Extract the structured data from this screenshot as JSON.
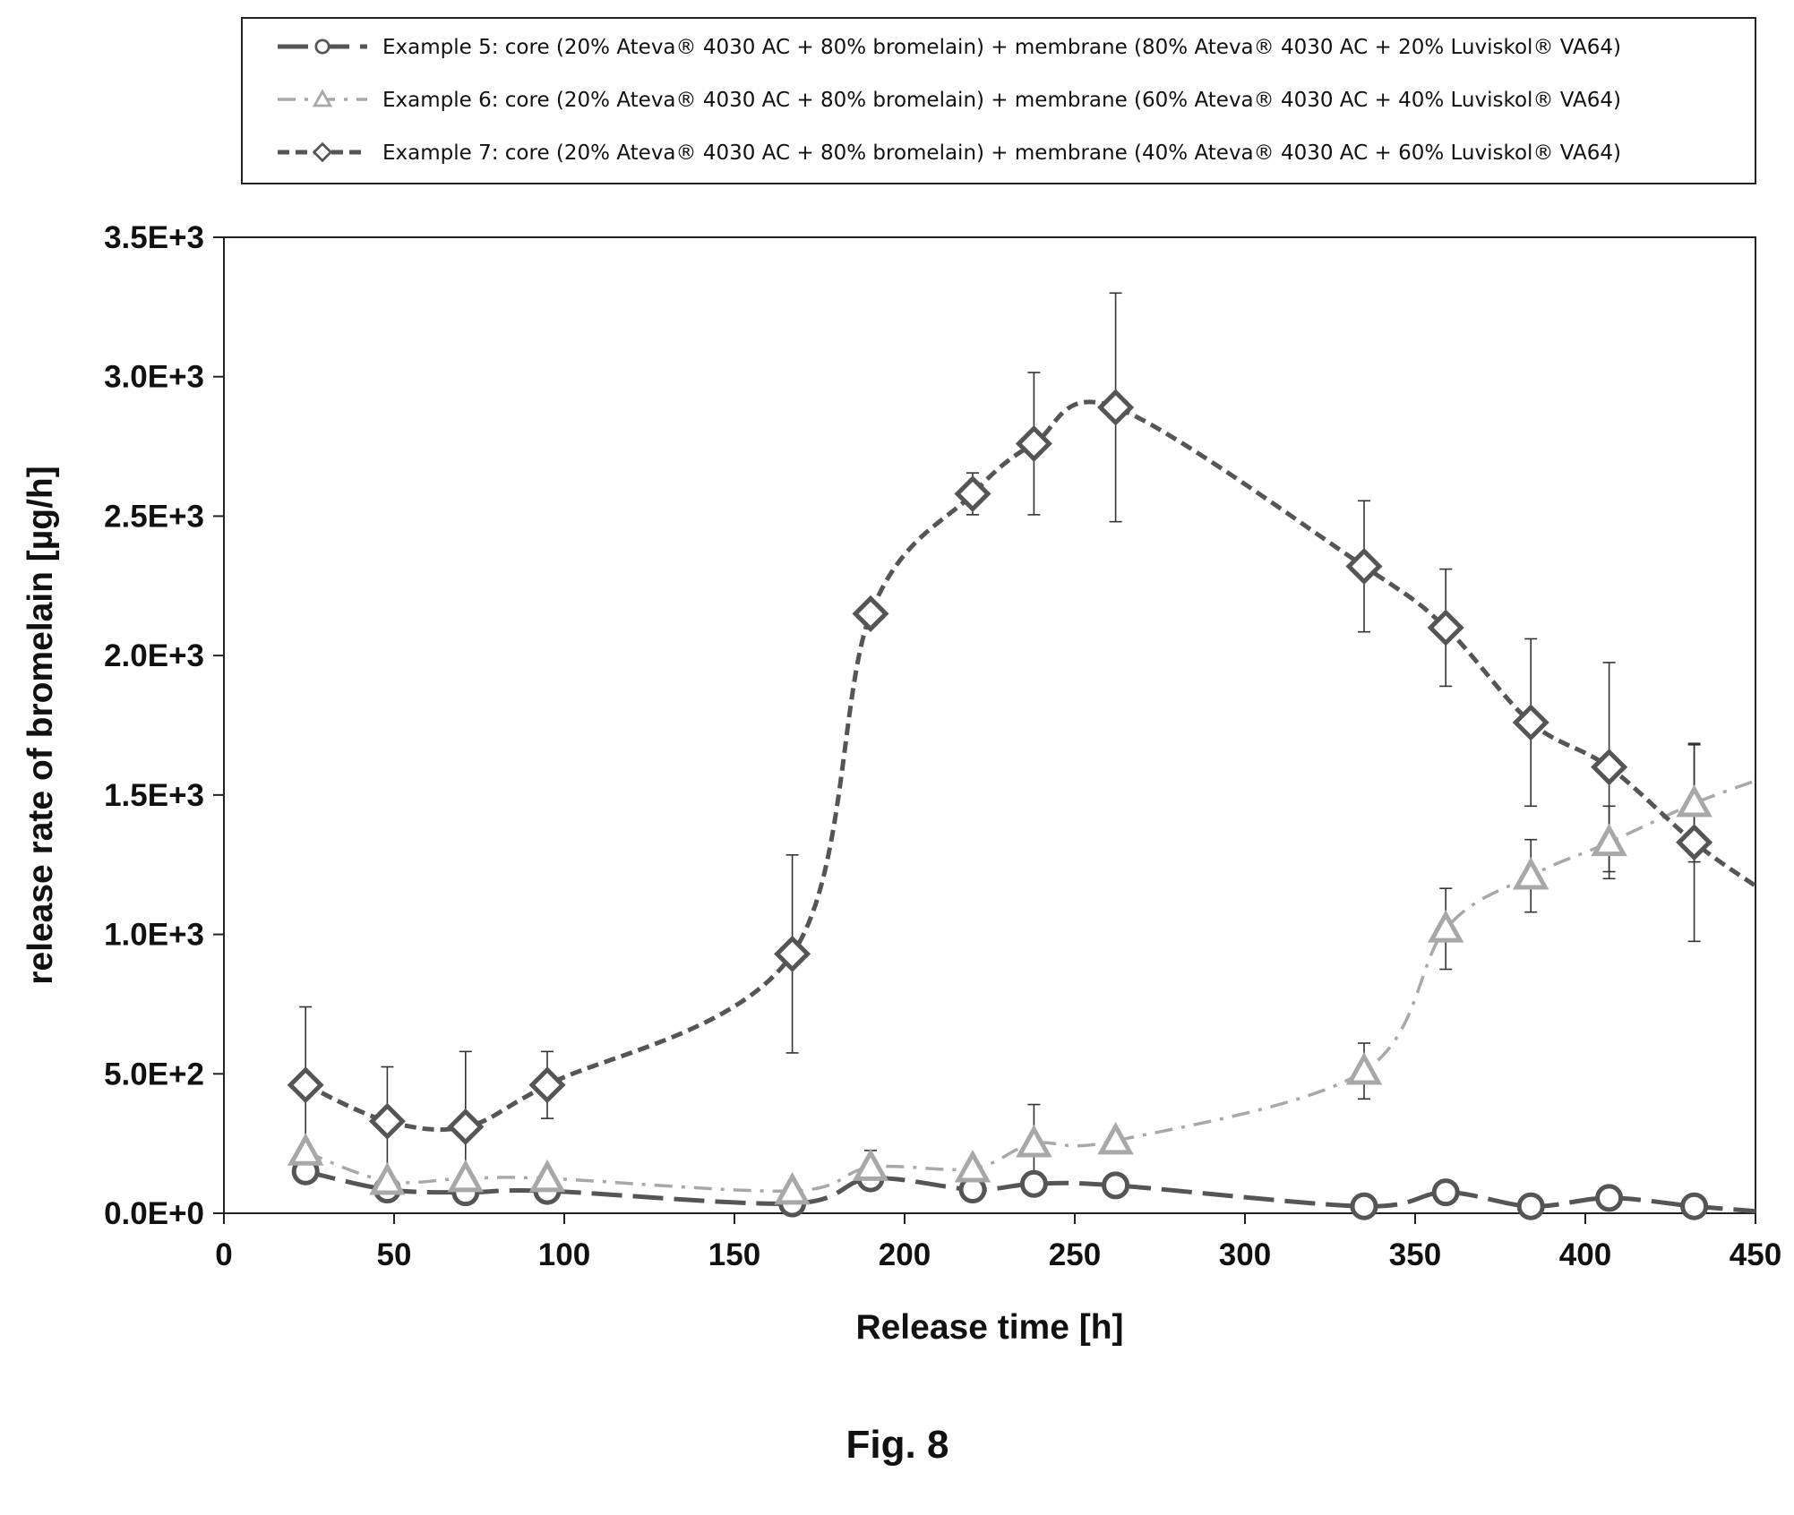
{
  "figure_label": "Fig. 8",
  "chart_data": {
    "type": "line",
    "xlabel": "Release time [h]",
    "ylabel": "release rate of bromelain [µg/h]",
    "xlim": [
      0,
      450
    ],
    "ylim": [
      0,
      3500
    ],
    "x_ticks": [
      0,
      50,
      100,
      150,
      200,
      250,
      300,
      350,
      400,
      450
    ],
    "x_tick_labels": [
      "0",
      "50",
      "100",
      "150",
      "200",
      "250",
      "300",
      "350",
      "400",
      "450"
    ],
    "y_ticks": [
      0,
      500,
      1000,
      1500,
      2000,
      2500,
      3000,
      3500
    ],
    "y_tick_labels": [
      "0.0E+0",
      "5.0E+2",
      "1.0E+3",
      "1.5E+3",
      "2.0E+3",
      "2.5E+3",
      "3.0E+3",
      "3.5E+3"
    ],
    "grid": false,
    "legend_position": "top",
    "series": [
      {
        "name": "Example 5: core (20% Ateva® 4030 AC + 80% bromelain) + membrane (80% Ateva® 4030 AC + 20% Luviskol® VA64)",
        "marker": "circle",
        "line_style": "long-dash",
        "color": "#555555",
        "x": [
          24,
          48,
          71,
          95,
          167,
          190,
          220,
          238,
          262,
          335,
          359,
          384,
          407,
          432
        ],
        "y": [
          150,
          85,
          75,
          80,
          35,
          125,
          85,
          105,
          100,
          25,
          75,
          25,
          55,
          25
        ],
        "err": [
          0,
          0,
          0,
          0,
          0,
          0,
          0,
          0,
          0,
          0,
          0,
          0,
          0,
          0
        ]
      },
      {
        "name": "Example 6: core (20% Ateva® 4030 AC + 80% bromelain) + membrane (60% Ateva® 4030 AC + 40% Luviskol® VA64)",
        "marker": "triangle",
        "line_style": "dash-dot",
        "color": "#a8a8a8",
        "x": [
          24,
          48,
          71,
          95,
          167,
          190,
          220,
          238,
          262,
          335,
          359,
          384,
          407,
          432
        ],
        "y": [
          220,
          115,
          125,
          125,
          80,
          165,
          160,
          250,
          260,
          510,
          1020,
          1210,
          1330,
          1470
        ],
        "err": [
          0,
          0,
          0,
          0,
          0,
          60,
          0,
          140,
          0,
          100,
          145,
          130,
          130,
          210
        ]
      },
      {
        "name": "Example 7: core (20% Ateva® 4030 AC + 80% bromelain) + membrane (40% Ateva® 4030 AC + 60% Luviskol® VA64)",
        "marker": "diamond",
        "line_style": "dash",
        "color": "#555555",
        "x": [
          24,
          48,
          71,
          95,
          167,
          190,
          220,
          238,
          262,
          335,
          359,
          384,
          407,
          432
        ],
        "y": [
          460,
          330,
          310,
          460,
          930,
          2150,
          2580,
          2760,
          2890,
          2320,
          2100,
          1760,
          1600,
          1330
        ],
        "err": [
          280,
          195,
          270,
          120,
          355,
          0,
          75,
          255,
          410,
          235,
          210,
          300,
          375,
          355
        ]
      }
    ]
  }
}
